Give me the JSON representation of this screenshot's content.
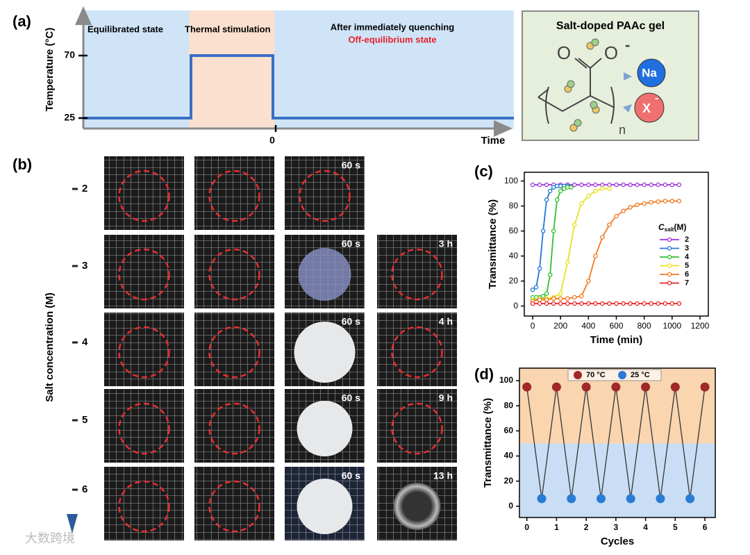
{
  "panel_a": {
    "label": "(a)",
    "y_axis_label": "Temperature (°C)",
    "ytick_high": 70,
    "ytick_low": 25,
    "xtick": 0,
    "x_axis_label": "Time",
    "regions": [
      "Equilibrated state",
      "Thermal stimulation",
      "After immediately quenching"
    ],
    "region_note": "Off-equilibrium state",
    "box": {
      "title": "Salt-doped PAAc gel",
      "oxygen": "O",
      "charge_o": "-",
      "cation": "Na",
      "cation_charge": "+",
      "anion": "X",
      "anion_charge": "-",
      "subscript": "n"
    }
  },
  "panel_b": {
    "label": "(b)",
    "axis_label": "Salt concentration (M)",
    "concentration_ticks": [
      2,
      3,
      4,
      5,
      6
    ],
    "col3_labels": [
      "60 s",
      "60 s",
      "60 s",
      "60 s",
      "60 s"
    ],
    "col4_labels": [
      "3 h",
      "4 h",
      "9 h",
      "13 h"
    ]
  },
  "watermark": "大数跨境",
  "chart_data": [
    {
      "type": "line",
      "label": "(c)",
      "x_label": "Time (min)",
      "y_label": "Transmittance (%)",
      "legend_title": "C",
      "legend_title_sub": "salt",
      "legend_title_unit": "(M)",
      "xlim": [
        -60,
        1260
      ],
      "ylim": [
        -8,
        107
      ],
      "xticks": [
        0,
        200,
        400,
        600,
        800,
        1000,
        1200
      ],
      "yticks": [
        0,
        20,
        40,
        60,
        80,
        100
      ],
      "series": [
        {
          "name": "2",
          "color": "#9b30d9",
          "x": [
            0,
            50,
            100,
            150,
            200,
            250,
            300,
            350,
            400,
            450,
            500,
            550,
            600,
            650,
            700,
            750,
            800,
            850,
            900,
            950,
            1000,
            1050
          ],
          "values": [
            97,
            97,
            97,
            97,
            97,
            97,
            97,
            97,
            97,
            97,
            97,
            97,
            97,
            97,
            97,
            97,
            97,
            97,
            97,
            97,
            97,
            97
          ]
        },
        {
          "name": "3",
          "color": "#1f77d4",
          "x": [
            0,
            25,
            50,
            75,
            100,
            125,
            150,
            175,
            200,
            225,
            250
          ],
          "values": [
            13,
            15,
            30,
            60,
            85,
            92,
            95,
            96,
            96,
            96,
            96
          ]
        },
        {
          "name": "4",
          "color": "#2ec02e",
          "x": [
            0,
            25,
            50,
            75,
            100,
            125,
            150,
            175,
            200,
            225,
            250,
            275
          ],
          "values": [
            7,
            7,
            7,
            8,
            10,
            25,
            60,
            85,
            92,
            94,
            95,
            95
          ]
        },
        {
          "name": "5",
          "color": "#e8e020",
          "x": [
            0,
            50,
            100,
            150,
            200,
            250,
            300,
            350,
            400,
            450,
            500,
            550
          ],
          "values": [
            5,
            6,
            6,
            7,
            10,
            35,
            65,
            82,
            88,
            92,
            94,
            94
          ]
        },
        {
          "name": "6",
          "color": "#f07820",
          "x": [
            0,
            50,
            100,
            150,
            200,
            250,
            300,
            350,
            400,
            450,
            500,
            550,
            600,
            650,
            700,
            750,
            800,
            850,
            900,
            950,
            1000,
            1050
          ],
          "values": [
            4,
            5,
            5,
            6,
            6,
            6,
            7,
            8,
            20,
            40,
            55,
            65,
            72,
            76,
            79,
            81,
            82,
            83,
            83.5,
            84,
            84,
            84
          ]
        },
        {
          "name": "7",
          "color": "#e02020",
          "x": [
            0,
            50,
            100,
            150,
            200,
            250,
            300,
            350,
            400,
            450,
            500,
            550,
            600,
            650,
            700,
            750,
            800,
            850,
            900,
            950,
            1000,
            1050
          ],
          "values": [
            2,
            2,
            2,
            2,
            2,
            2,
            2,
            2,
            2,
            2,
            2,
            2,
            2,
            2,
            2,
            2,
            2,
            2,
            2,
            2,
            2,
            2
          ]
        }
      ]
    },
    {
      "type": "line",
      "label": "(d)",
      "x_label": "Cycles",
      "y_label": "Transmittance (%)",
      "xlim": [
        -0.25,
        6.35
      ],
      "ylim": [
        -9,
        110
      ],
      "xticks": [
        0,
        1,
        2,
        3,
        4,
        5,
        6
      ],
      "yticks": [
        0,
        20,
        40,
        60,
        80,
        100
      ],
      "shade_split": 50,
      "shade_colors": [
        "#f9d5b0",
        "#c9def4"
      ],
      "connect": true,
      "series": [
        {
          "name": "70 °C",
          "color": "#a02828",
          "x": [
            0,
            1,
            2,
            3,
            4,
            5,
            6
          ],
          "values": [
            95,
            95,
            95,
            95,
            95,
            95,
            95
          ]
        },
        {
          "name": "25 °C",
          "color": "#2a7bd4",
          "x": [
            0.5,
            1.5,
            2.5,
            3.5,
            4.5,
            5.5
          ],
          "values": [
            6,
            6,
            6,
            6,
            6,
            6
          ]
        }
      ]
    }
  ]
}
